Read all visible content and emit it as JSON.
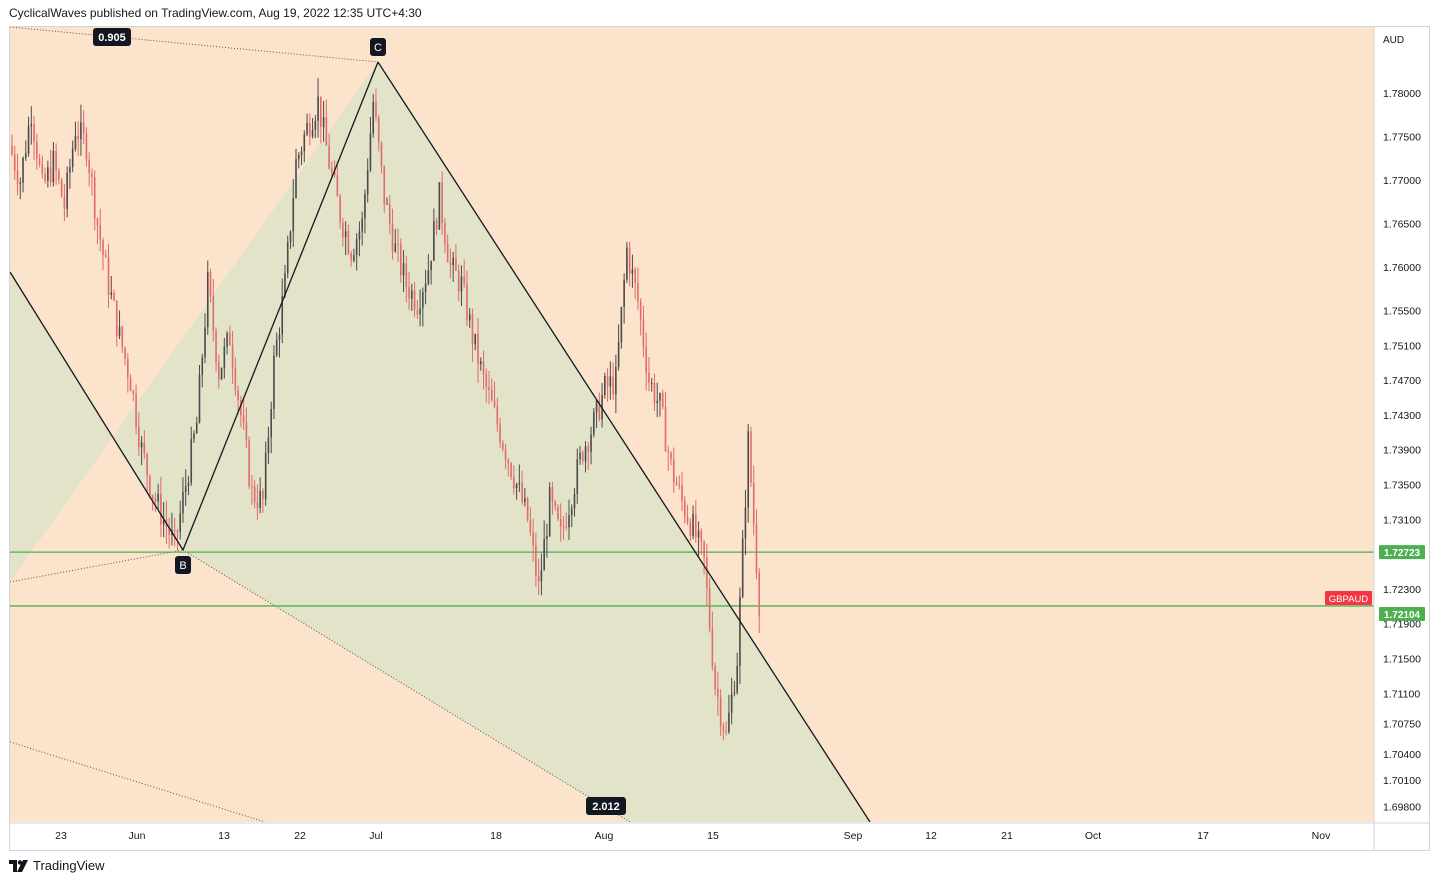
{
  "header": {
    "published_text": "CyclicalWaves published on TradingView.com, Aug 19, 2022 12:35 UTC+4:30"
  },
  "footer": {
    "brand": "TradingView",
    "logo_icon": "tradingview-logo-icon"
  },
  "colors": {
    "background": "#fbe3cc",
    "pattern_fill": "#dfe2c9",
    "candle_up": "#4a4a4a",
    "candle_down": "#e26a6a",
    "level_line": "#4caf50",
    "symbol_badge": "#f23645",
    "axis_text": "#131722"
  },
  "chart_data": {
    "type": "candlestick",
    "symbol": "GBPAUD",
    "currency": "AUD",
    "ylim": [
      1.6962,
      1.7876
    ],
    "price_ticks": [
      "1.78000",
      "1.77500",
      "1.77000",
      "1.76500",
      "1.76000",
      "1.75500",
      "1.75100",
      "1.74700",
      "1.74300",
      "1.73900",
      "1.73500",
      "1.73100",
      "1.72300",
      "1.71900",
      "1.71500",
      "1.71100",
      "1.70750",
      "1.70400",
      "1.70100",
      "1.69800"
    ],
    "date_ticks": [
      "23",
      "Jun",
      "13",
      "22",
      "Jul",
      "18",
      "Aug",
      "15",
      "Sep",
      "12",
      "21",
      "Oct",
      "17",
      "Nov"
    ],
    "level_lines": [
      {
        "price": 1.72723,
        "label": "1.72723"
      },
      {
        "price": 1.72104,
        "label": "1.72104"
      }
    ],
    "last_price_badge": "GBPAUD",
    "pattern_points": [
      {
        "label": "B",
        "date": "2022-06-08",
        "price": 1.7274
      },
      {
        "label": "C",
        "date": "2022-07-01",
        "price": 1.7819
      }
    ],
    "fib_ratios": [
      "0.905",
      "2.012"
    ],
    "series": [
      {
        "date": "2022-05-17",
        "close": 1.774
      },
      {
        "date": "2022-05-18",
        "close": 1.77
      },
      {
        "date": "2022-05-19",
        "close": 1.778
      },
      {
        "date": "2022-05-20",
        "close": 1.769
      },
      {
        "date": "2022-05-23",
        "close": 1.772
      },
      {
        "date": "2022-05-24",
        "close": 1.767
      },
      {
        "date": "2022-05-25",
        "close": 1.776
      },
      {
        "date": "2022-05-26",
        "close": 1.774
      },
      {
        "date": "2022-05-27",
        "close": 1.765
      },
      {
        "date": "2022-05-30",
        "close": 1.758
      },
      {
        "date": "2022-05-31",
        "close": 1.752
      },
      {
        "date": "2022-06-01",
        "close": 1.747
      },
      {
        "date": "2022-06-02",
        "close": 1.739
      },
      {
        "date": "2022-06-03",
        "close": 1.734
      },
      {
        "date": "2022-06-06",
        "close": 1.731
      },
      {
        "date": "2022-06-07",
        "close": 1.728
      },
      {
        "date": "2022-06-08",
        "close": 1.735
      },
      {
        "date": "2022-06-09",
        "close": 1.742
      },
      {
        "date": "2022-06-10",
        "close": 1.758
      },
      {
        "date": "2022-06-13",
        "close": 1.748
      },
      {
        "date": "2022-06-14",
        "close": 1.752
      },
      {
        "date": "2022-06-15",
        "close": 1.743
      },
      {
        "date": "2022-06-16",
        "close": 1.734
      },
      {
        "date": "2022-06-17",
        "close": 1.733
      },
      {
        "date": "2022-06-20",
        "close": 1.749
      },
      {
        "date": "2022-06-21",
        "close": 1.758
      },
      {
        "date": "2022-06-22",
        "close": 1.772
      },
      {
        "date": "2022-06-23",
        "close": 1.776
      },
      {
        "date": "2022-06-24",
        "close": 1.779
      },
      {
        "date": "2022-06-27",
        "close": 1.772
      },
      {
        "date": "2022-06-28",
        "close": 1.766
      },
      {
        "date": "2022-06-29",
        "close": 1.762
      },
      {
        "date": "2022-06-30",
        "close": 1.765
      },
      {
        "date": "2022-07-01",
        "close": 1.779
      },
      {
        "date": "2022-07-04",
        "close": 1.768
      },
      {
        "date": "2022-07-05",
        "close": 1.762
      },
      {
        "date": "2022-07-06",
        "close": 1.758
      },
      {
        "date": "2022-07-07",
        "close": 1.756
      },
      {
        "date": "2022-07-08",
        "close": 1.76
      },
      {
        "date": "2022-07-11",
        "close": 1.768
      },
      {
        "date": "2022-07-12",
        "close": 1.76
      },
      {
        "date": "2022-07-13",
        "close": 1.758
      },
      {
        "date": "2022-07-14",
        "close": 1.752
      },
      {
        "date": "2022-07-15",
        "close": 1.747
      },
      {
        "date": "2022-07-18",
        "close": 1.743
      },
      {
        "date": "2022-07-19",
        "close": 1.739
      },
      {
        "date": "2022-07-20",
        "close": 1.735
      },
      {
        "date": "2022-07-21",
        "close": 1.731
      },
      {
        "date": "2022-07-22",
        "close": 1.723
      },
      {
        "date": "2022-07-25",
        "close": 1.733
      },
      {
        "date": "2022-07-26",
        "close": 1.729
      },
      {
        "date": "2022-07-27",
        "close": 1.734
      },
      {
        "date": "2022-07-28",
        "close": 1.739
      },
      {
        "date": "2022-07-29",
        "close": 1.742
      },
      {
        "date": "2022-08-01",
        "close": 1.746
      },
      {
        "date": "2022-08-02",
        "close": 1.747
      },
      {
        "date": "2022-08-03",
        "close": 1.762
      },
      {
        "date": "2022-08-04",
        "close": 1.756
      },
      {
        "date": "2022-08-05",
        "close": 1.747
      },
      {
        "date": "2022-08-08",
        "close": 1.744
      },
      {
        "date": "2022-08-09",
        "close": 1.737
      },
      {
        "date": "2022-08-10",
        "close": 1.733
      },
      {
        "date": "2022-08-11",
        "close": 1.73
      },
      {
        "date": "2022-08-12",
        "close": 1.726
      },
      {
        "date": "2022-08-15",
        "close": 1.712
      },
      {
        "date": "2022-08-16",
        "close": 1.706
      },
      {
        "date": "2022-08-17",
        "close": 1.715
      },
      {
        "date": "2022-08-18",
        "close": 1.74
      },
      {
        "date": "2022-08-19",
        "close": 1.7215
      }
    ]
  }
}
